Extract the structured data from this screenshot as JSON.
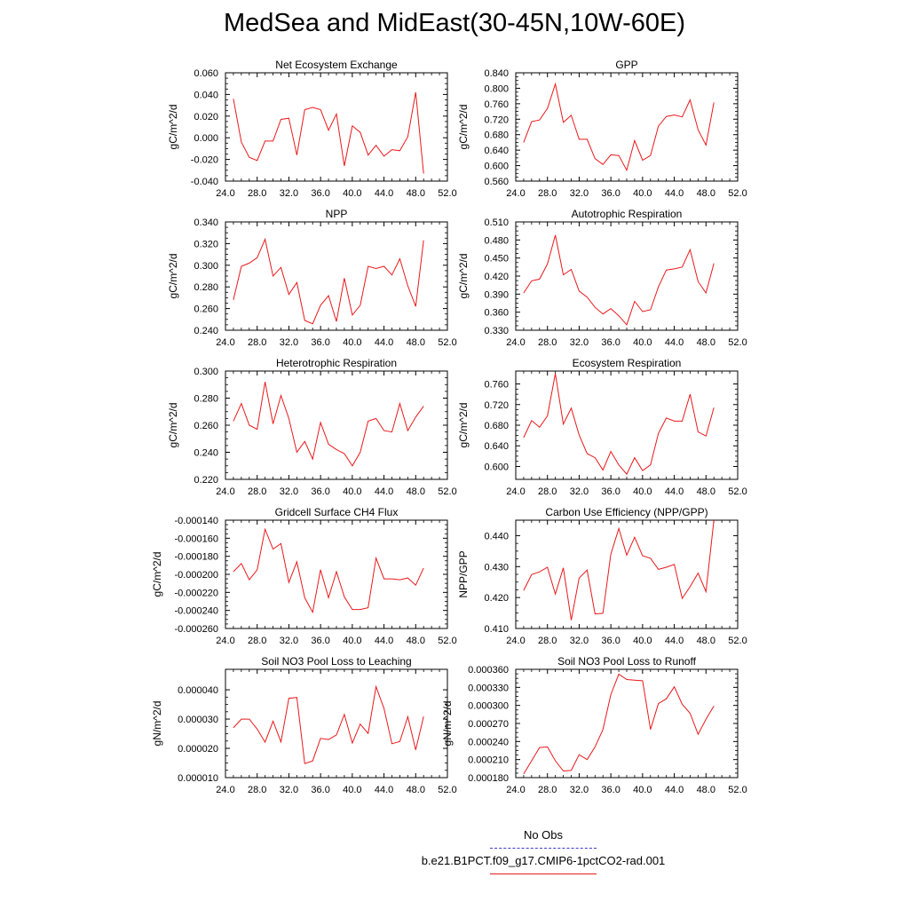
{
  "title": "MedSea and MidEast(30-45N,10W-60E)",
  "colors": {
    "model": "#e8191c",
    "obs": "#3b3bd0",
    "axis": "#000000"
  },
  "legend": {
    "obs_label": "No Obs",
    "model_label": "b.e21.B1PCT.f09_g17.CMIP6-1pctCO2-rad.001"
  },
  "x_ticks": [
    24.0,
    28.0,
    32.0,
    36.0,
    40.0,
    44.0,
    48.0,
    52.0
  ],
  "x_range": [
    24,
    52
  ],
  "chart_data": [
    {
      "type": "line",
      "title": "Net Ecosystem Exchange",
      "ylabel": "gC/m^2/d",
      "ylim": [
        -0.04,
        0.06
      ],
      "yticks": [
        -0.04,
        -0.02,
        0.0,
        0.02,
        0.04,
        0.06
      ],
      "ydec": 3,
      "x": [
        25,
        26,
        27,
        28,
        29,
        30,
        31,
        32,
        33,
        34,
        35,
        36,
        37,
        38,
        39,
        40,
        41,
        42,
        43,
        44,
        45,
        46,
        47,
        48,
        49
      ],
      "series": [
        {
          "values": [
            0.036,
            -0.004,
            -0.018,
            -0.021,
            -0.003,
            -0.003,
            0.017,
            0.018,
            -0.016,
            0.026,
            0.028,
            0.026,
            0.007,
            0.022,
            -0.026,
            0.011,
            0.005,
            -0.016,
            -0.007,
            -0.017,
            -0.011,
            -0.012,
            0.001,
            0.042,
            -0.033
          ]
        }
      ]
    },
    {
      "type": "line",
      "title": "GPP",
      "ylabel": "gC/m^2/d",
      "ylim": [
        0.56,
        0.84
      ],
      "yticks": [
        0.56,
        0.6,
        0.64,
        0.68,
        0.72,
        0.76,
        0.8,
        0.84
      ],
      "ydec": 3,
      "x": [
        25,
        26,
        27,
        28,
        29,
        30,
        31,
        32,
        33,
        34,
        35,
        36,
        37,
        38,
        39,
        40,
        41,
        42,
        43,
        44,
        45,
        46,
        47,
        48,
        49
      ],
      "series": [
        {
          "values": [
            0.66,
            0.714,
            0.718,
            0.748,
            0.811,
            0.712,
            0.73,
            0.668,
            0.668,
            0.618,
            0.603,
            0.628,
            0.626,
            0.588,
            0.665,
            0.614,
            0.626,
            0.702,
            0.727,
            0.731,
            0.726,
            0.77,
            0.693,
            0.653,
            0.763
          ]
        }
      ]
    },
    {
      "type": "line",
      "title": "NPP",
      "ylabel": "gC/m^2/d",
      "ylim": [
        0.24,
        0.34
      ],
      "yticks": [
        0.24,
        0.26,
        0.28,
        0.3,
        0.32,
        0.34
      ],
      "ydec": 3,
      "x": [
        25,
        26,
        27,
        28,
        29,
        30,
        31,
        32,
        33,
        34,
        35,
        36,
        37,
        38,
        39,
        40,
        41,
        42,
        43,
        44,
        45,
        46,
        47,
        48,
        49
      ],
      "series": [
        {
          "values": [
            0.268,
            0.299,
            0.302,
            0.307,
            0.324,
            0.29,
            0.298,
            0.273,
            0.284,
            0.249,
            0.246,
            0.263,
            0.272,
            0.248,
            0.288,
            0.254,
            0.263,
            0.299,
            0.297,
            0.299,
            0.291,
            0.306,
            0.281,
            0.262,
            0.323
          ]
        }
      ]
    },
    {
      "type": "line",
      "title": "Autotrophic Respiration",
      "ylabel": "gC/m^2/d",
      "ylim": [
        0.33,
        0.51
      ],
      "yticks": [
        0.33,
        0.36,
        0.39,
        0.42,
        0.45,
        0.48,
        0.51
      ],
      "ydec": 3,
      "x": [
        25,
        26,
        27,
        28,
        29,
        30,
        31,
        32,
        33,
        34,
        35,
        36,
        37,
        38,
        39,
        40,
        41,
        42,
        43,
        44,
        45,
        46,
        47,
        48,
        49
      ],
      "series": [
        {
          "values": [
            0.392,
            0.412,
            0.415,
            0.44,
            0.488,
            0.422,
            0.431,
            0.395,
            0.385,
            0.368,
            0.357,
            0.366,
            0.354,
            0.339,
            0.378,
            0.361,
            0.364,
            0.402,
            0.43,
            0.432,
            0.435,
            0.464,
            0.411,
            0.392,
            0.441
          ]
        }
      ]
    },
    {
      "type": "line",
      "title": "Heterotrophic Respiration",
      "ylabel": "gC/m^2/d",
      "ylim": [
        0.22,
        0.3
      ],
      "yticks": [
        0.22,
        0.24,
        0.26,
        0.28,
        0.3
      ],
      "ydec": 3,
      "x": [
        25,
        26,
        27,
        28,
        29,
        30,
        31,
        32,
        33,
        34,
        35,
        36,
        37,
        38,
        39,
        40,
        41,
        42,
        43,
        44,
        45,
        46,
        47,
        48,
        49
      ],
      "series": [
        {
          "values": [
            0.263,
            0.276,
            0.26,
            0.257,
            0.292,
            0.261,
            0.282,
            0.265,
            0.24,
            0.248,
            0.235,
            0.262,
            0.246,
            0.242,
            0.239,
            0.23,
            0.24,
            0.263,
            0.265,
            0.256,
            0.255,
            0.276,
            0.256,
            0.266,
            0.274
          ]
        }
      ]
    },
    {
      "type": "line",
      "title": "Ecosystem Respiration",
      "ylabel": "gC/m^2/d",
      "ylim": [
        0.575,
        0.785
      ],
      "yticks": [
        0.6,
        0.64,
        0.68,
        0.72,
        0.76
      ],
      "ydec": 3,
      "x": [
        25,
        26,
        27,
        28,
        29,
        30,
        31,
        32,
        33,
        34,
        35,
        36,
        37,
        38,
        39,
        40,
        41,
        42,
        43,
        44,
        45,
        46,
        47,
        48,
        49
      ],
      "series": [
        {
          "values": [
            0.656,
            0.689,
            0.676,
            0.698,
            0.78,
            0.682,
            0.713,
            0.661,
            0.625,
            0.617,
            0.593,
            0.629,
            0.603,
            0.585,
            0.617,
            0.592,
            0.603,
            0.664,
            0.694,
            0.688,
            0.688,
            0.74,
            0.667,
            0.659,
            0.714
          ]
        }
      ]
    },
    {
      "type": "line",
      "title": "Gridcell Surface CH4 Flux",
      "ylabel": "gC/m^2/d",
      "ylim": [
        -0.00026,
        -0.00014
      ],
      "yticks": [
        -0.00026,
        -0.00024,
        -0.00022,
        -0.0002,
        -0.00018,
        -0.00016,
        -0.00014
      ],
      "ydec": 6,
      "x": [
        25,
        26,
        27,
        28,
        29,
        30,
        31,
        32,
        33,
        34,
        35,
        36,
        37,
        38,
        39,
        40,
        41,
        42,
        43,
        44,
        45,
        46,
        47,
        48,
        49
      ],
      "series": [
        {
          "values": [
            -0.000197,
            -0.000188,
            -0.000206,
            -0.000195,
            -0.00015,
            -0.000172,
            -0.000166,
            -0.000209,
            -0.000186,
            -0.000226,
            -0.000242,
            -0.000195,
            -0.000226,
            -0.000197,
            -0.000225,
            -0.000239,
            -0.000239,
            -0.000237,
            -0.000182,
            -0.000205,
            -0.000205,
            -0.000206,
            -0.000204,
            -0.000212,
            -0.000193
          ]
        }
      ]
    },
    {
      "type": "line",
      "title": "Carbon Use Efficiency (NPP/GPP)",
      "ylabel": "NPP/GPP",
      "ylim": [
        0.41,
        0.445
      ],
      "yticks": [
        0.41,
        0.42,
        0.43,
        0.44
      ],
      "ydec": 3,
      "x": [
        25,
        26,
        27,
        28,
        29,
        30,
        31,
        32,
        33,
        34,
        35,
        36,
        37,
        38,
        39,
        40,
        41,
        42,
        43,
        44,
        45,
        46,
        47,
        48,
        49
      ],
      "series": [
        {
          "values": [
            0.4223,
            0.4274,
            0.4283,
            0.4298,
            0.4211,
            0.4296,
            0.4127,
            0.4263,
            0.4289,
            0.4147,
            0.4149,
            0.434,
            0.4423,
            0.4337,
            0.4395,
            0.4335,
            0.4327,
            0.4291,
            0.4298,
            0.4307,
            0.4197,
            0.4235,
            0.4279,
            0.4219,
            0.445
          ]
        }
      ]
    },
    {
      "type": "line",
      "title": "Soil NO3 Pool Loss to Leaching",
      "ylabel": "gN/m^2/d",
      "ylim": [
        1e-05,
        4.7e-05
      ],
      "yticks": [
        1e-05,
        2e-05,
        3e-05,
        4e-05
      ],
      "ydec": 6,
      "x": [
        25,
        26,
        27,
        28,
        29,
        30,
        31,
        32,
        33,
        34,
        35,
        36,
        37,
        38,
        39,
        40,
        41,
        42,
        43,
        44,
        45,
        46,
        47,
        48,
        49
      ],
      "series": [
        {
          "values": [
            2.7e-05,
            3e-05,
            3e-05,
            2.66e-05,
            2.21e-05,
            2.93e-05,
            2.22e-05,
            3.71e-05,
            3.74e-05,
            1.48e-05,
            1.57e-05,
            2.34e-05,
            2.3e-05,
            2.46e-05,
            3.16e-05,
            2.18e-05,
            2.83e-05,
            2.51e-05,
            4.11e-05,
            3.36e-05,
            2.16e-05,
            2.23e-05,
            3.08e-05,
            1.95e-05,
            3.09e-05
          ]
        }
      ]
    },
    {
      "type": "line",
      "title": "Soil NO3 Pool Loss to Runoff",
      "ylabel": "gN/m^2/d",
      "ylim": [
        0.00018,
        0.00036
      ],
      "yticks": [
        0.00018,
        0.00021,
        0.00024,
        0.00027,
        0.0003,
        0.00033,
        0.00036
      ],
      "ydec": 6,
      "x": [
        25,
        26,
        27,
        28,
        29,
        30,
        31,
        32,
        33,
        34,
        35,
        36,
        37,
        38,
        39,
        40,
        41,
        42,
        43,
        44,
        45,
        46,
        47,
        48,
        49
      ],
      "series": [
        {
          "values": [
            0.000186,
            0.000208,
            0.00023,
            0.000231,
            0.000208,
            0.000191,
            0.000192,
            0.000218,
            0.00021,
            0.000231,
            0.00026,
            0.000318,
            0.000352,
            0.000343,
            0.000342,
            0.000341,
            0.00026,
            0.000303,
            0.000311,
            0.000331,
            0.000302,
            0.000287,
            0.000252,
            0.000277,
            0.000299
          ]
        }
      ]
    }
  ]
}
